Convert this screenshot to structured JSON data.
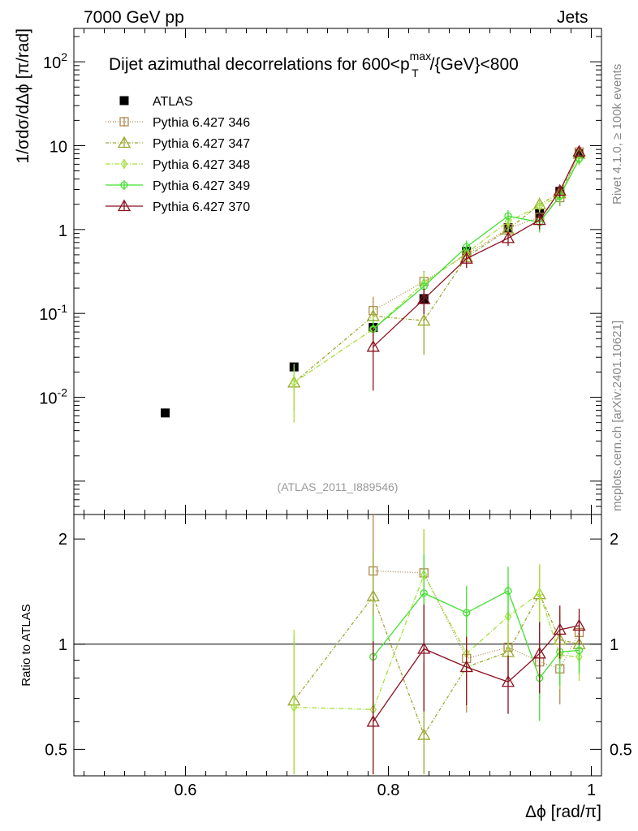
{
  "header": {
    "energy": "7000 GeV pp",
    "category": "Jets"
  },
  "side_labels": {
    "rivet": "Rivet 4.1.0, ≥ 100k events",
    "mcplots": "mcplots.cern.ch [arXiv:2401.10621]"
  },
  "colors": {
    "atlas": "#000000",
    "p346": "#b08a50",
    "p347": "#9aa830",
    "p348": "#a8e040",
    "p349": "#40e030",
    "p370": "#8b1020"
  },
  "chart_data": {
    "type": "line",
    "title": "Dijet azimuthal decorrelations for 600<p_T^max/{GeV}<800",
    "title_parts": {
      "pre": "Dijet azimuthal decorrelations for 600<p",
      "sup": "max",
      "sub": "T",
      "post": "/{GeV}<800"
    },
    "watermark": "(ATLAS_2011_I889546)",
    "xlabel": "Δϕ [rad/π]",
    "ylabel": "1/σdσ/dΔϕ [π/rad]",
    "ratio_ylabel": "Ratio to ATLAS",
    "xlim": [
      0.49,
      1.01
    ],
    "ylim": [
      0.0004,
      250
    ],
    "yscale": "log",
    "ratio_ylim": [
      0.42,
      2.35
    ],
    "ratio_yscale": "log",
    "x_ticks": [
      "0.6",
      "0.8",
      "1"
    ],
    "y_ticks": [
      "10^-2",
      "10^-1",
      "1",
      "10",
      "10^2"
    ],
    "ratio_ticks": [
      "0.5",
      "1",
      "2"
    ],
    "legend_position": "top-left",
    "series": [
      {
        "name": "ATLAS",
        "style": "square-filled",
        "dash": "none",
        "x": [
          0.58,
          0.707,
          0.785,
          0.835,
          0.877,
          0.918,
          0.949,
          0.969,
          0.988
        ],
        "values": [
          0.0065,
          0.023,
          0.068,
          0.15,
          0.55,
          1.05,
          1.55,
          2.85,
          8.0
        ]
      },
      {
        "name": "Pythia 6.427 346",
        "style": "square-open",
        "dash": "1 2",
        "x": [
          0.785,
          0.835,
          0.877,
          0.918,
          0.949,
          0.969,
          0.988
        ],
        "values": [
          0.108,
          0.24,
          0.5,
          1.03,
          1.4,
          2.4,
          8.4
        ],
        "ratio": [
          1.62,
          1.6,
          0.91,
          0.98,
          0.89,
          0.85,
          1.08
        ],
        "err_lo": [
          0.05,
          0.08,
          0.15,
          0.2,
          0.3,
          0.5,
          1.0
        ],
        "err_hi": [
          0.05,
          0.08,
          0.15,
          0.2,
          0.3,
          0.5,
          1.0
        ]
      },
      {
        "name": "Pythia 6.427 347",
        "style": "triangle-open",
        "dash": "4 2 1 2",
        "x": [
          0.707,
          0.785,
          0.835,
          0.877,
          0.918,
          0.949,
          0.969,
          0.988
        ],
        "values": [
          0.015,
          0.093,
          0.082,
          0.47,
          1.0,
          2.0,
          2.7,
          8.0
        ],
        "ratio": [
          0.69,
          1.37,
          0.55,
          0.86,
          0.95,
          1.39,
          1.03,
          1.0
        ],
        "err_lo": [
          0.008,
          0.03,
          0.05,
          0.1,
          0.2,
          0.4,
          0.5,
          1.0
        ],
        "err_hi": [
          0.008,
          0.03,
          0.05,
          0.1,
          0.2,
          0.4,
          0.5,
          1.0
        ]
      },
      {
        "name": "Pythia 6.427 348",
        "style": "diamond-open",
        "dash": "6 2 1 2",
        "x": [
          0.707,
          0.785,
          0.835,
          0.877,
          0.918,
          0.949,
          0.969,
          0.988
        ],
        "values": [
          0.015,
          0.065,
          0.23,
          0.52,
          1.25,
          1.9,
          2.5,
          6.8
        ],
        "ratio": [
          0.66,
          0.65,
          1.58,
          0.94,
          1.2,
          1.4,
          0.93,
          0.92
        ],
        "err_lo": [
          0.01,
          0.03,
          0.08,
          0.15,
          0.3,
          0.4,
          0.5,
          1.0
        ],
        "err_hi": [
          0.01,
          0.03,
          0.08,
          0.15,
          0.3,
          0.4,
          0.5,
          1.0
        ]
      },
      {
        "name": "Pythia 6.427 349",
        "style": "circle-open",
        "dash": "none",
        "x": [
          0.785,
          0.835,
          0.877,
          0.918,
          0.949,
          0.969,
          0.988
        ],
        "values": [
          0.065,
          0.21,
          0.62,
          1.45,
          1.22,
          2.5,
          7.0
        ],
        "ratio": [
          0.92,
          1.4,
          1.23,
          1.42,
          0.8,
          0.95,
          0.96
        ],
        "err_lo": [
          0.02,
          0.06,
          0.12,
          0.25,
          0.3,
          0.5,
          1.0
        ],
        "err_hi": [
          0.02,
          0.06,
          0.12,
          0.25,
          0.3,
          0.5,
          1.0
        ]
      },
      {
        "name": "Pythia 6.427 370",
        "style": "triangle-open",
        "dash": "none",
        "x": [
          0.785,
          0.835,
          0.877,
          0.918,
          0.949,
          0.969,
          0.988
        ],
        "values": [
          0.04,
          0.148,
          0.45,
          0.79,
          1.3,
          2.9,
          8.5
        ],
        "ratio": [
          0.6,
          0.97,
          0.86,
          0.78,
          0.94,
          1.1,
          1.13
        ],
        "err_lo": [
          0.028,
          0.05,
          0.1,
          0.15,
          0.3,
          0.5,
          1.0
        ],
        "err_hi": [
          0.028,
          0.05,
          0.1,
          0.15,
          0.3,
          0.5,
          1.0
        ]
      }
    ]
  }
}
